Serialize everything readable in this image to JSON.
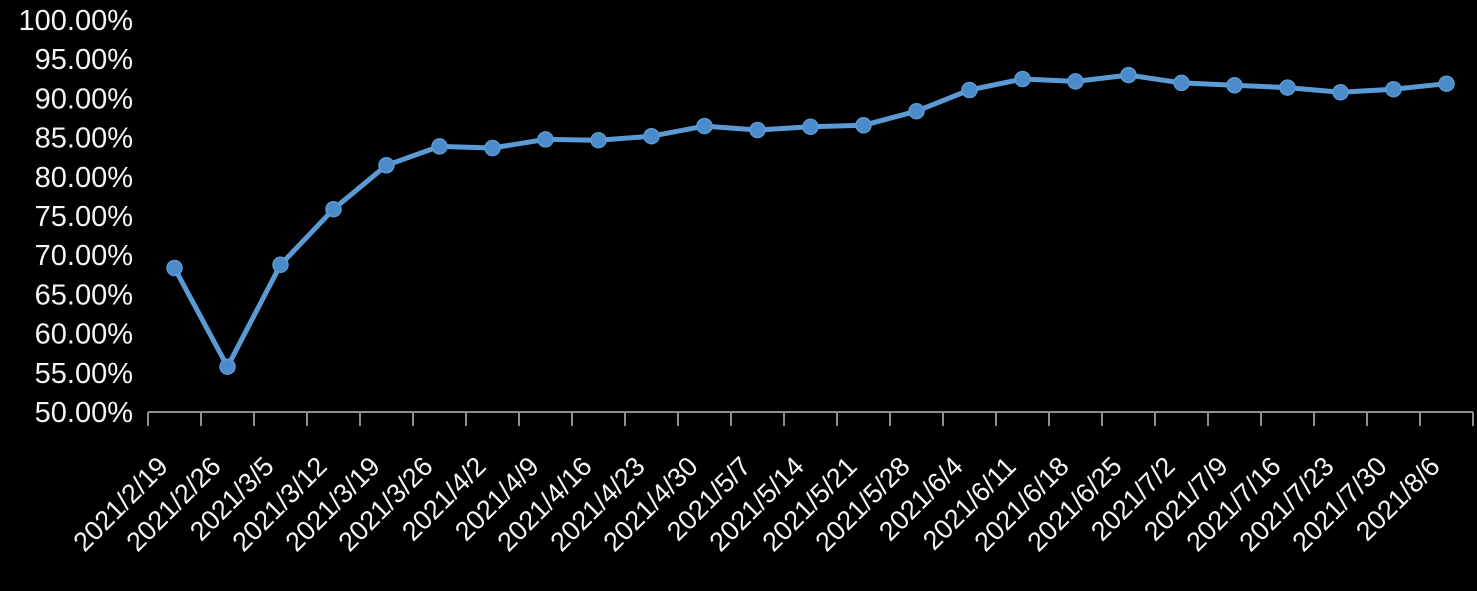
{
  "page": {
    "background": "#000000"
  },
  "chart_data": {
    "type": "line",
    "title": "",
    "categories": [
      "2021/2/19",
      "2021/2/26",
      "2021/3/5",
      "2021/3/12",
      "2021/3/19",
      "2021/3/26",
      "2021/4/2",
      "2021/4/9",
      "2021/4/16",
      "2021/4/23",
      "2021/4/30",
      "2021/5/7",
      "2021/5/14",
      "2021/5/21",
      "2021/5/28",
      "2021/6/4",
      "2021/6/11",
      "2021/6/18",
      "2021/6/25",
      "2021/7/2",
      "2021/7/9",
      "2021/7/16",
      "2021/7/23",
      "2021/7/30",
      "2021/8/6"
    ],
    "series": [
      {
        "name": "",
        "values": [
          68.5,
          55.9,
          68.9,
          76.0,
          81.6,
          84.0,
          83.8,
          84.9,
          84.8,
          85.3,
          86.6,
          86.1,
          86.5,
          86.7,
          88.5,
          91.2,
          92.6,
          92.3,
          93.1,
          92.1,
          91.8,
          91.5,
          90.9,
          91.3,
          92.0
        ],
        "line_color": "#5b9bd5",
        "marker_color": "#4b8bca"
      }
    ],
    "ylim": [
      50,
      100
    ],
    "ytick_step": 5,
    "yticks": [
      {
        "value": 100,
        "label": "100.00%"
      },
      {
        "value": 95,
        "label": "95.00%"
      },
      {
        "value": 90,
        "label": "90.00%"
      },
      {
        "value": 85,
        "label": "85.00%"
      },
      {
        "value": 80,
        "label": "80.00%"
      },
      {
        "value": 75,
        "label": "75.00%"
      },
      {
        "value": 70,
        "label": "70.00%"
      },
      {
        "value": 65,
        "label": "65.00%"
      },
      {
        "value": 60,
        "label": "60.00%"
      },
      {
        "value": 55,
        "label": "55.00%"
      },
      {
        "value": 50,
        "label": "50.00%"
      }
    ],
    "grid": false,
    "legend_position": "none",
    "x_label_rotation_deg": -45,
    "axis_color": "#8e8e8e",
    "label_color": "#f5f5f5",
    "background": "#000000"
  }
}
